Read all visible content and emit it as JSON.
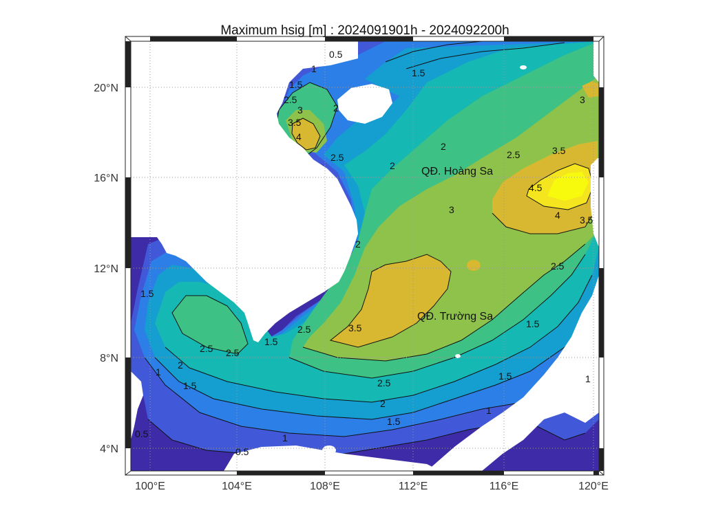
{
  "figure": {
    "title": "Maximum hsig [m] : 2024091901h - 2024092200h",
    "variable": "hsig",
    "unit": "m",
    "time_start": "2024091901h",
    "time_end": "2024092200h"
  },
  "axes": {
    "x_ticks": [
      "100°E",
      "104°E",
      "108°E",
      "112°E",
      "116°E",
      "120°E"
    ],
    "y_ticks": [
      "20°N",
      "16°N",
      "12°N",
      "8°N",
      "4°N"
    ],
    "lon_range": [
      99.2,
      120.3
    ],
    "lat_range": [
      3.0,
      22.0
    ],
    "grid": true
  },
  "places": {
    "hoang_sa": "QĐ. Hoàng Sa",
    "truong_sa": "QĐ. Trường Sa"
  },
  "contour_levels": [
    0.5,
    1,
    1.5,
    2,
    2.5,
    3,
    3.5,
    4,
    4.5
  ],
  "contour_labels": [
    "0.5",
    "1",
    "1.5",
    "2",
    "2.5",
    "3",
    "3.5",
    "4",
    "4.5"
  ],
  "colors": {
    "land": "#ffffff",
    "band_0": "#3e2ba8",
    "band_1": "#4158d8",
    "band_2": "#2c7fe6",
    "band_3": "#149fd0",
    "band_4": "#16b8b3",
    "band_5": "#3dc185",
    "band_6": "#8ec24a",
    "band_7": "#d8b830",
    "band_8": "#f5e51e",
    "band_9": "#f8fa0e",
    "contour": "#111111"
  }
}
